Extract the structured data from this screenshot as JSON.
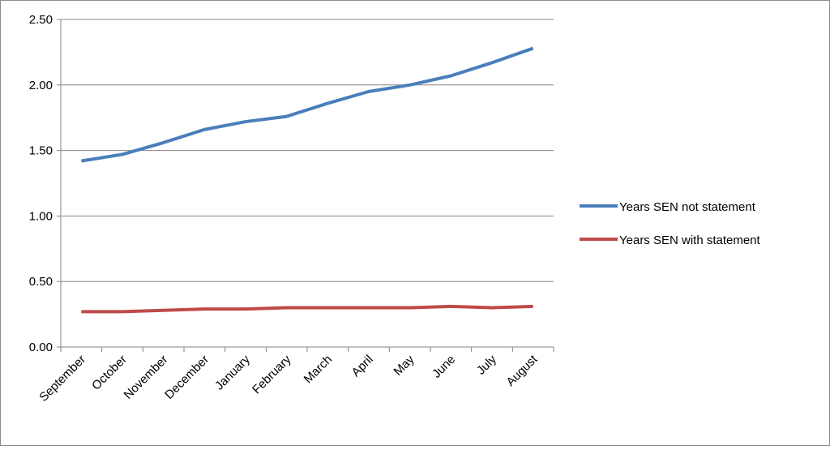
{
  "chart_data": {
    "type": "line",
    "categories": [
      "September",
      "October",
      "November",
      "December",
      "January",
      "February",
      "March",
      "April",
      "May",
      "June",
      "July",
      "August"
    ],
    "series": [
      {
        "name": "Years SEN not statement",
        "color": "#4a7ebb",
        "values": [
          1.42,
          1.47,
          1.56,
          1.66,
          1.72,
          1.76,
          1.86,
          1.95,
          2.0,
          2.07,
          2.17,
          2.28
        ]
      },
      {
        "name": "Years SEN with statement",
        "color": "#be4b48",
        "values": [
          0.27,
          0.27,
          0.28,
          0.29,
          0.29,
          0.3,
          0.3,
          0.3,
          0.3,
          0.31,
          0.3,
          0.31
        ]
      }
    ],
    "ylim": [
      0,
      2.5
    ],
    "yticks": [
      {
        "value": 0,
        "label": "0.00"
      },
      {
        "value": 0.5,
        "label": "0.50"
      },
      {
        "value": 1,
        "label": "1.00"
      },
      {
        "value": 1.5,
        "label": "1.50"
      },
      {
        "value": 2,
        "label": "2.00"
      },
      {
        "value": 2.5,
        "label": "2.50"
      }
    ],
    "grid": true,
    "legend": "right"
  }
}
